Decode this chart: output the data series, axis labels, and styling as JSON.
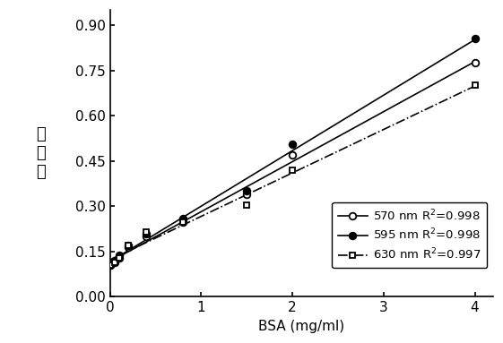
{
  "x_570": [
    0,
    0.05,
    0.1,
    0.2,
    0.4,
    0.8,
    1.5,
    2.0,
    4.0
  ],
  "y_570": [
    0.105,
    0.115,
    0.13,
    0.165,
    0.2,
    0.248,
    0.34,
    0.47,
    0.775
  ],
  "x_595": [
    0,
    0.05,
    0.1,
    0.2,
    0.4,
    0.8,
    1.5,
    2.0,
    4.0
  ],
  "y_595": [
    0.105,
    0.12,
    0.138,
    0.17,
    0.21,
    0.26,
    0.35,
    0.505,
    0.855
  ],
  "x_630": [
    0,
    0.05,
    0.1,
    0.2,
    0.4,
    0.8,
    1.5,
    2.0,
    4.0
  ],
  "y_630": [
    0.105,
    0.115,
    0.13,
    0.17,
    0.215,
    0.248,
    0.305,
    0.42,
    0.7
  ],
  "label_570": "570 nm R$^2$=0.998",
  "label_595": "595 nm R$^2$=0.998",
  "label_630": "630 nm R$^2$=0.997",
  "xlabel": "BSA (mg/ml)",
  "ylabel": "吸光値",
  "xlim": [
    0,
    4.2
  ],
  "ylim": [
    0,
    0.95
  ],
  "xticks": [
    0,
    1,
    2,
    3,
    4
  ],
  "yticks": [
    0.0,
    0.15,
    0.3,
    0.45,
    0.6,
    0.75,
    0.9
  ],
  "figsize": [
    5.61,
    3.83
  ],
  "dpi": 100
}
